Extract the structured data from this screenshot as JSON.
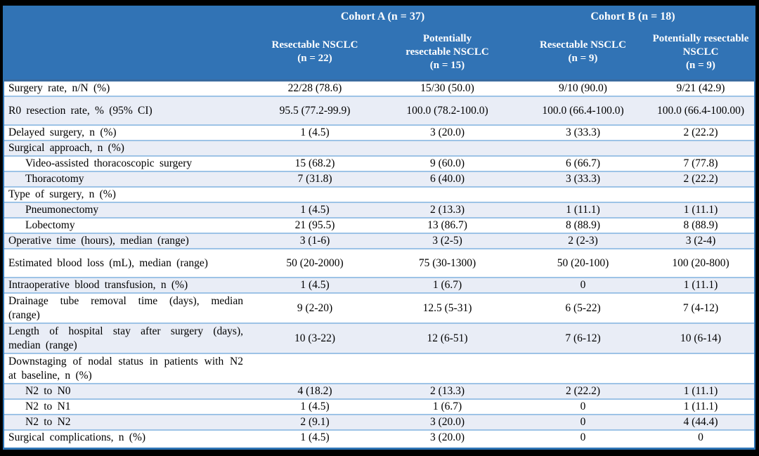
{
  "table": {
    "colors": {
      "header_bg": "#3173B5",
      "stripe_bg": "#E9EDF6",
      "row_border": "#9DC3E6",
      "table_border": "#2E74B5",
      "header_rule": "#3A6B9F",
      "header_text": "#FFFFFF",
      "body_text": "#000000",
      "frame_bg": "#000000"
    },
    "cohorts": [
      {
        "label": "Cohort A (n = 37)"
      },
      {
        "label": "Cohort B (n = 18)"
      }
    ],
    "columns": [
      {
        "lines": [
          "Resectable NSCLC",
          "(n = 22)"
        ]
      },
      {
        "lines": [
          "Potentially",
          "resectable NSCLC",
          "(n = 15)"
        ]
      },
      {
        "lines": [
          "Resectable NSCLC",
          "(n = 9)"
        ]
      },
      {
        "lines": [
          "Potentially resectable",
          "NSCLC",
          "(n = 9)"
        ]
      }
    ],
    "rows": [
      {
        "label": "Surgery rate, n/N (%)",
        "values": [
          "22/28 (78.6)",
          "15/30 (50.0)",
          "9/10 (90.0)",
          "9/21 (42.9)"
        ]
      },
      {
        "label": "R0 resection rate, % (95% CI)",
        "tall": true,
        "values": [
          "95.5 (77.2-99.9)",
          "100.0 (78.2-100.0)",
          "100.0 (66.4-100.0)",
          "100.0 (66.4-100.00)"
        ]
      },
      {
        "label": "Delayed surgery, n (%)",
        "values": [
          "1 (4.5)",
          "3 (20.0)",
          "3 (33.3)",
          "2 (22.2)"
        ]
      },
      {
        "label": "Surgical approach, n (%)",
        "values": [
          "",
          "",
          "",
          ""
        ]
      },
      {
        "label": "Video-assisted thoracoscopic surgery",
        "indent": true,
        "values": [
          "15 (68.2)",
          "9 (60.0)",
          "6 (66.7)",
          "7 (77.8)"
        ]
      },
      {
        "label": "Thoracotomy",
        "indent": true,
        "values": [
          "7 (31.8)",
          "6 (40.0)",
          "3 (33.3)",
          "2 (22.2)"
        ]
      },
      {
        "label": "Type of surgery, n (%)",
        "values": [
          "",
          "",
          "",
          ""
        ]
      },
      {
        "label": "Pneumonectomy",
        "indent": true,
        "values": [
          "1 (4.5)",
          "2 (13.3)",
          "1 (11.1)",
          "1 (11.1)"
        ]
      },
      {
        "label": "Lobectomy",
        "indent": true,
        "values": [
          "21 (95.5)",
          "13 (86.7)",
          "8 (88.9)",
          "8 (88.9)"
        ]
      },
      {
        "label": "Operative time (hours), median (range)",
        "values": [
          "3 (1-6)",
          "3 (2-5)",
          "2 (2-3)",
          "3 (2-4)"
        ]
      },
      {
        "label": "Estimated blood loss (mL), median (range)",
        "tall": true,
        "values": [
          "50 (20-2000)",
          "75 (30-1300)",
          "50 (20-100)",
          "100 (20-800)"
        ]
      },
      {
        "label": "Intraoperative blood transfusion, n (%)",
        "values": [
          "1 (4.5)",
          "1 (6.7)",
          "0",
          "1 (11.1)"
        ]
      },
      {
        "label": "Drainage tube removal time (days), median (range)",
        "wrap": true,
        "values": [
          "9 (2-20)",
          "12.5 (5-31)",
          "6 (5-22)",
          "7 (4-12)"
        ]
      },
      {
        "label": "Length of hospital stay after surgery (days), median (range)",
        "wrap": true,
        "values": [
          "10 (3-22)",
          "12 (6-51)",
          "7 (6-12)",
          "10 (6-14)"
        ]
      },
      {
        "label": "Downstaging of nodal status in patients with N2 at baseline, n (%)",
        "wrap": true,
        "values": [
          "",
          "",
          "",
          ""
        ]
      },
      {
        "label": "N2 to N0",
        "indent": true,
        "values": [
          "4 (18.2)",
          "2 (13.3)",
          "2 (22.2)",
          "1 (11.1)"
        ]
      },
      {
        "label": "N2 to N1",
        "indent": true,
        "values": [
          "1 (4.5)",
          "1 (6.7)",
          "0",
          "1 (11.1)"
        ]
      },
      {
        "label": "N2 to N2",
        "indent": true,
        "values": [
          "2 (9.1)",
          "3 (20.0)",
          "0",
          "4 (44.4)"
        ]
      },
      {
        "label": "Surgical complications, n (%)",
        "values": [
          "1 (4.5)",
          "3 (20.0)",
          "0",
          "0"
        ]
      }
    ]
  }
}
